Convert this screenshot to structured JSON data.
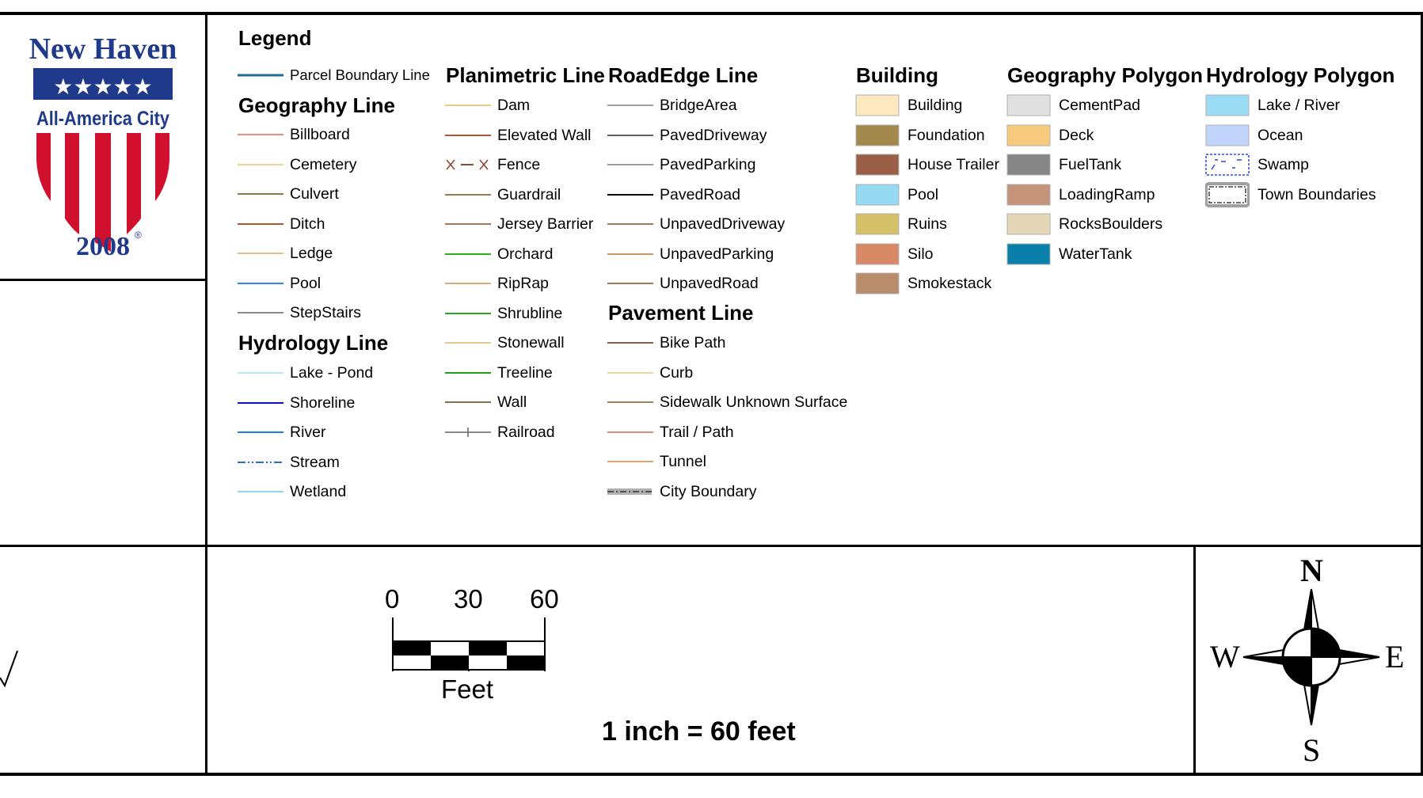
{
  "logo": {
    "city": "New Haven",
    "banner": "All-America City",
    "registered": "®",
    "year": "2008",
    "stars": "★★★★★",
    "colors": {
      "navy": "#1f3a8a",
      "red": "#d0102d",
      "white": "#ffffff"
    }
  },
  "legend": {
    "title": "Legend",
    "parcel": {
      "label": "Parcel Boundary Line",
      "color": "#1a6e96"
    },
    "columns": {
      "geography_line": {
        "header": "Geography Line",
        "items": [
          {
            "label": "Billboard",
            "color": "#e8907a"
          },
          {
            "label": "Cemetery",
            "color": "#e5d88a"
          },
          {
            "label": "Culvert",
            "color": "#8c7a52"
          },
          {
            "label": "Ditch",
            "color": "#a8583e"
          },
          {
            "label": "Ledge",
            "color": "#e3c08a"
          },
          {
            "label": "Pool",
            "color": "#2d86e8"
          },
          {
            "label": "StepStairs",
            "color": "#8a8a8a"
          }
        ]
      },
      "hydrology_line": {
        "header": "Hydrology Line",
        "items": [
          {
            "label": "Lake - Pond",
            "color": "#bde6f5",
            "style": "solid"
          },
          {
            "label": "Shoreline",
            "color": "#0a12c8",
            "style": "solid"
          },
          {
            "label": "River",
            "color": "#1b82e6",
            "style": "solid"
          },
          {
            "label": "Stream",
            "color": "#2a6ad8",
            "style": "dashdot"
          },
          {
            "label": "Wetland",
            "color": "#8fd6f0",
            "style": "solid"
          }
        ]
      },
      "planimetric_line": {
        "header": "Planimetric Line",
        "items": [
          {
            "label": "Dam",
            "color": "#e6c98a",
            "style": "solid"
          },
          {
            "label": "Elevated Wall",
            "color": "#a8583e",
            "style": "solid"
          },
          {
            "label": "Fence",
            "color": "#8a4a3a",
            "style": "fence"
          },
          {
            "label": "Guardrail",
            "color": "#9a7a50",
            "style": "solid"
          },
          {
            "label": "Jersey Barrier",
            "color": "#a07a5a",
            "style": "solid"
          },
          {
            "label": "Orchard",
            "color": "#28b014",
            "style": "solid"
          },
          {
            "label": "RipRap",
            "color": "#e2a878",
            "style": "solid"
          },
          {
            "label": "Shrubline",
            "color": "#2aa822",
            "style": "solid"
          },
          {
            "label": "Stonewall",
            "color": "#e0c890",
            "style": "solid"
          },
          {
            "label": "Treeline",
            "color": "#20a018",
            "style": "solid"
          },
          {
            "label": "Wall",
            "color": "#8a7048",
            "style": "solid"
          },
          {
            "label": "Railroad",
            "color": "#666666",
            "style": "railroad"
          }
        ]
      },
      "roadedge_line": {
        "header": "RoadEdge Line",
        "items": [
          {
            "label": "BridgeArea",
            "color": "#a0a0a0",
            "style": "solid"
          },
          {
            "label": "PavedDriveway",
            "color": "#606060",
            "style": "solid"
          },
          {
            "label": "PavedParking",
            "color": "#9a9a9a",
            "style": "solid"
          },
          {
            "label": "PavedRoad",
            "color": "#000000",
            "style": "solid"
          },
          {
            "label": "UnpavedDriveway",
            "color": "#9a7a5a",
            "style": "solid"
          },
          {
            "label": "UnpavedParking",
            "color": "#c89a6a",
            "style": "solid"
          },
          {
            "label": "UnpavedRoad",
            "color": "#a0784a",
            "style": "solid"
          }
        ]
      },
      "pavement_line": {
        "header": "Pavement Line",
        "items": [
          {
            "label": "Bike Path",
            "color": "#8a6048",
            "style": "solid"
          },
          {
            "label": "Curb",
            "color": "#e8d8a0",
            "style": "solid"
          },
          {
            "label": "Sidewalk Unknown Surface",
            "color": "#a08050",
            "style": "solid"
          },
          {
            "label": "Trail / Path",
            "color": "#e08a78",
            "style": "solid"
          },
          {
            "label": "Tunnel",
            "color": "#d8a870",
            "style": "solid"
          },
          {
            "label": "City Boundary",
            "color": "#707070",
            "style": "boundary"
          }
        ]
      },
      "building": {
        "header": "Building",
        "items": [
          {
            "label": "Building",
            "color": "#fde9c0"
          },
          {
            "label": "Foundation",
            "color": "#a38a4c"
          },
          {
            "label": "House Trailer",
            "color": "#9a5e46"
          },
          {
            "label": "Pool",
            "color": "#96daf2"
          },
          {
            "label": "Ruins",
            "color": "#d5c06a"
          },
          {
            "label": "Silo",
            "color": "#d98866"
          },
          {
            "label": "Smokestack",
            "color": "#b98c6c"
          }
        ]
      },
      "geography_polygon": {
        "header": "Geography Polygon",
        "items": [
          {
            "label": "CementPad",
            "color": "#e0e0e0"
          },
          {
            "label": "Deck",
            "color": "#f7c97c"
          },
          {
            "label": "FuelTank",
            "color": "#868686"
          },
          {
            "label": "LoadingRamp",
            "color": "#c4937a"
          },
          {
            "label": "RocksBoulders",
            "color": "#e6d6b8"
          },
          {
            "label": "WaterTank",
            "color": "#0980aa"
          }
        ]
      },
      "hydrology_polygon": {
        "header": "Hydrology Polygon",
        "items": [
          {
            "label": "Lake / River",
            "color": "#9adcf4",
            "style": "fill"
          },
          {
            "label": "Ocean",
            "color": "#c0d4fa",
            "style": "fill"
          },
          {
            "label": "Swamp",
            "color": "#2a4ad8",
            "style": "swamp"
          },
          {
            "label": "Town Boundaries",
            "color": "#a0a0a0",
            "style": "town"
          }
        ]
      }
    }
  },
  "scale": {
    "ticks": [
      "0",
      "30",
      "60"
    ],
    "unit": "Feet",
    "ratio": "1 inch = 60 feet"
  },
  "compass": {
    "n": "N",
    "s": "S",
    "e": "E",
    "w": "W"
  }
}
